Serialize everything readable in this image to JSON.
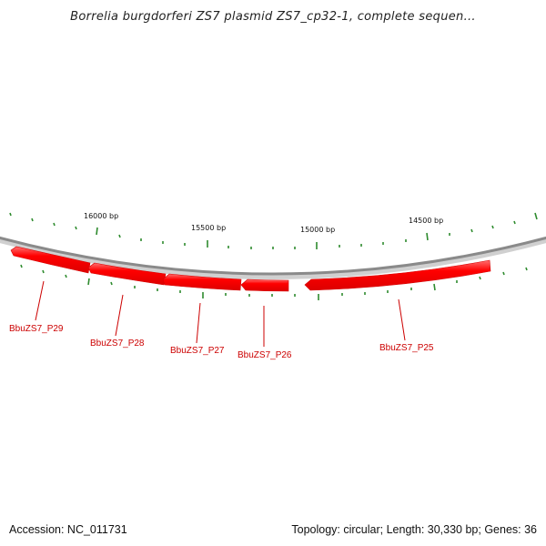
{
  "title": "Borrelia burgdorferi ZS7 plasmid ZS7_cp32-1, complete sequen...",
  "scale_labels": [
    "16000 bp",
    "15500 bp",
    "15000 bp",
    "14500 bp"
  ],
  "genes": [
    {
      "name": "BbuZS7_P29",
      "strand": "reverse"
    },
    {
      "name": "BbuZS7_P28",
      "strand": "reverse"
    },
    {
      "name": "BbuZS7_P27",
      "strand": "reverse"
    },
    {
      "name": "BbuZS7_P26",
      "strand": "reverse"
    },
    {
      "name": "BbuZS7_P25",
      "strand": "reverse"
    }
  ],
  "footer": {
    "accession": "Accession: NC_011731",
    "summary": "Topology: circular; Length: 30,330 bp; Genes: 36"
  },
  "colors": {
    "backbone": "#8a8a8a",
    "gene_fill": "#ff0000",
    "gene_highlight": "#ff6a6a",
    "tick": "#2e8b2e",
    "label_text": "#cc0000"
  }
}
